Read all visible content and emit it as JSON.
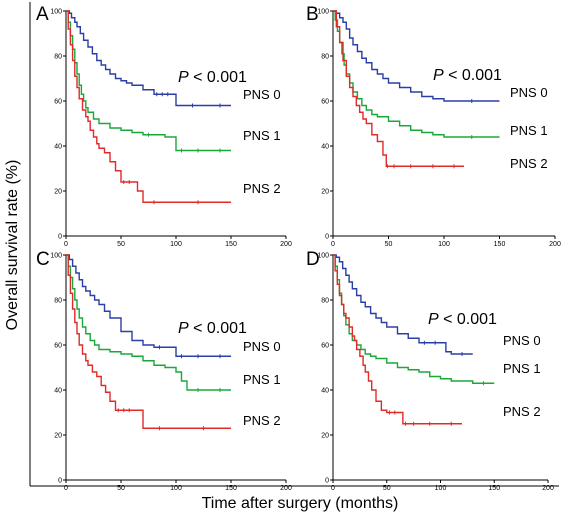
{
  "figure": {
    "ylabel": "Overall survival rate (%)",
    "xlabel": "Time after surgery (months)"
  },
  "chart_data": [
    {
      "type": "line",
      "panel": "A",
      "p_label": "P",
      "p_rest": "< 0.001",
      "xlim": [
        0,
        200
      ],
      "ylim": [
        0,
        100
      ],
      "xticks": [
        0,
        50,
        100,
        150,
        200
      ],
      "yticks": [
        0,
        20,
        40,
        60,
        80,
        100
      ],
      "series": [
        {
          "name": "PNS 0",
          "color": "#2b3ea6",
          "x": [
            0,
            3,
            5,
            8,
            10,
            13,
            16,
            20,
            24,
            28,
            32,
            36,
            40,
            45,
            50,
            55,
            60,
            70,
            80,
            85,
            90,
            95,
            100,
            130,
            150
          ],
          "y": [
            100,
            99,
            97,
            95,
            93,
            90,
            87,
            84,
            81,
            78,
            76,
            74,
            72,
            70,
            69,
            68,
            67,
            65,
            63,
            63,
            63,
            63,
            58,
            58,
            58
          ]
        },
        {
          "name": "PNS 1",
          "color": "#1aa83a",
          "x": [
            0,
            2,
            4,
            6,
            8,
            10,
            12,
            14,
            16,
            18,
            20,
            25,
            30,
            40,
            50,
            60,
            70,
            80,
            90,
            100,
            110,
            130,
            150
          ],
          "y": [
            100,
            95,
            89,
            83,
            77,
            72,
            67,
            63,
            60,
            57,
            55,
            52,
            50,
            48,
            47,
            46,
            45,
            45,
            44,
            38,
            38,
            38,
            38
          ]
        },
        {
          "name": "PNS 2",
          "color": "#e12a2a",
          "x": [
            0,
            2,
            4,
            6,
            8,
            10,
            12,
            15,
            18,
            20,
            22,
            25,
            28,
            30,
            35,
            40,
            45,
            50,
            55,
            60,
            65,
            70,
            90,
            150
          ],
          "y": [
            100,
            92,
            85,
            78,
            71,
            66,
            61,
            56,
            53,
            51,
            47,
            44,
            41,
            39,
            37,
            33,
            29,
            24,
            24,
            24,
            20,
            15,
            15,
            15
          ]
        }
      ]
    },
    {
      "type": "line",
      "panel": "B",
      "p_label": "P",
      "p_rest": "< 0.001",
      "xlim": [
        0,
        200
      ],
      "ylim": [
        0,
        100
      ],
      "xticks": [
        0,
        50,
        100,
        150,
        200
      ],
      "yticks": [
        0,
        20,
        40,
        60,
        80,
        100
      ],
      "series": [
        {
          "name": "PNS 0",
          "color": "#2b3ea6",
          "x": [
            0,
            3,
            6,
            9,
            12,
            15,
            18,
            22,
            26,
            30,
            35,
            40,
            45,
            50,
            60,
            70,
            80,
            90,
            100,
            150
          ],
          "y": [
            100,
            99,
            97,
            95,
            92,
            88,
            85,
            82,
            79,
            77,
            74,
            72,
            70,
            68,
            66,
            64,
            62,
            61,
            60,
            60
          ]
        },
        {
          "name": "PNS 1",
          "color": "#1aa83a",
          "x": [
            0,
            2,
            4,
            6,
            8,
            10,
            12,
            15,
            18,
            22,
            26,
            30,
            35,
            40,
            50,
            60,
            70,
            80,
            90,
            100,
            150
          ],
          "y": [
            100,
            96,
            91,
            86,
            81,
            76,
            72,
            68,
            64,
            61,
            58,
            56,
            54,
            53,
            51,
            49,
            47,
            46,
            45,
            44,
            44
          ]
        },
        {
          "name": "PNS 2",
          "color": "#e12a2a",
          "x": [
            0,
            3,
            6,
            9,
            12,
            15,
            18,
            21,
            24,
            27,
            30,
            35,
            40,
            45,
            48,
            50,
            60,
            80,
            100,
            118
          ],
          "y": [
            100,
            93,
            86,
            78,
            71,
            66,
            62,
            58,
            55,
            52,
            50,
            45,
            42,
            36,
            31,
            31,
            31,
            31,
            31,
            31
          ]
        }
      ]
    },
    {
      "type": "line",
      "panel": "C",
      "p_label": "P",
      "p_rest": "< 0.001",
      "xlim": [
        0,
        200
      ],
      "ylim": [
        0,
        100
      ],
      "xticks": [
        0,
        50,
        100,
        150,
        200
      ],
      "yticks": [
        0,
        20,
        40,
        60,
        80,
        100
      ],
      "series": [
        {
          "name": "PNS 0",
          "color": "#2b3ea6",
          "x": [
            0,
            3,
            6,
            9,
            12,
            15,
            18,
            22,
            26,
            30,
            35,
            40,
            50,
            60,
            70,
            80,
            90,
            100,
            110,
            130,
            150
          ],
          "y": [
            100,
            98,
            95,
            92,
            89,
            86,
            84,
            82,
            80,
            78,
            75,
            72,
            66,
            62,
            60,
            59,
            59,
            55,
            55,
            55,
            55
          ]
        },
        {
          "name": "PNS 1",
          "color": "#1aa83a",
          "x": [
            0,
            2,
            4,
            6,
            8,
            10,
            12,
            15,
            18,
            22,
            26,
            30,
            40,
            50,
            60,
            70,
            80,
            90,
            100,
            105,
            110,
            130,
            150
          ],
          "y": [
            100,
            95,
            90,
            85,
            80,
            76,
            72,
            68,
            65,
            62,
            60,
            58,
            57,
            56,
            55,
            53,
            51,
            50,
            48,
            44,
            40,
            40,
            40
          ]
        },
        {
          "name": "PNS 2",
          "color": "#e12a2a",
          "x": [
            0,
            2,
            4,
            6,
            8,
            10,
            12,
            15,
            18,
            20,
            24,
            28,
            32,
            36,
            40,
            45,
            50,
            55,
            60,
            70,
            100,
            150
          ],
          "y": [
            100,
            91,
            83,
            76,
            70,
            65,
            60,
            56,
            53,
            51,
            48,
            46,
            42,
            39,
            35,
            31,
            31,
            31,
            31,
            23,
            23,
            23
          ]
        }
      ]
    },
    {
      "type": "line",
      "panel": "D",
      "p_label": "P",
      "p_rest": "< 0.001",
      "xlim": [
        0,
        200
      ],
      "ylim": [
        0,
        100
      ],
      "xticks": [
        0,
        50,
        100,
        150,
        200
      ],
      "yticks": [
        0,
        20,
        40,
        60,
        80,
        100
      ],
      "series": [
        {
          "name": "PNS 0",
          "color": "#2b3ea6",
          "x": [
            0,
            3,
            6,
            9,
            12,
            15,
            18,
            22,
            26,
            30,
            35,
            40,
            45,
            50,
            60,
            70,
            80,
            90,
            100,
            105,
            110,
            130
          ],
          "y": [
            100,
            99,
            97,
            94,
            91,
            88,
            85,
            82,
            79,
            77,
            74,
            72,
            70,
            68,
            65,
            63,
            61,
            61,
            61,
            57,
            56,
            56
          ]
        },
        {
          "name": "PNS 1",
          "color": "#1aa83a",
          "x": [
            0,
            2,
            4,
            6,
            8,
            10,
            12,
            15,
            18,
            22,
            26,
            30,
            35,
            40,
            50,
            60,
            70,
            80,
            90,
            100,
            110,
            130,
            150
          ],
          "y": [
            100,
            95,
            89,
            83,
            78,
            73,
            69,
            65,
            62,
            60,
            58,
            56,
            55,
            54,
            52,
            50,
            49,
            48,
            46,
            45,
            44,
            43,
            43
          ]
        },
        {
          "name": "PNS 2",
          "color": "#e12a2a",
          "x": [
            0,
            2,
            4,
            6,
            8,
            10,
            12,
            15,
            18,
            20,
            22,
            25,
            28,
            30,
            33,
            36,
            40,
            45,
            50,
            55,
            60,
            65,
            70,
            80,
            100,
            120
          ],
          "y": [
            100,
            93,
            87,
            82,
            78,
            74,
            72,
            68,
            64,
            62,
            58,
            55,
            51,
            48,
            44,
            40,
            35,
            31,
            30,
            30,
            30,
            25,
            25,
            25,
            25,
            25
          ]
        }
      ]
    }
  ]
}
